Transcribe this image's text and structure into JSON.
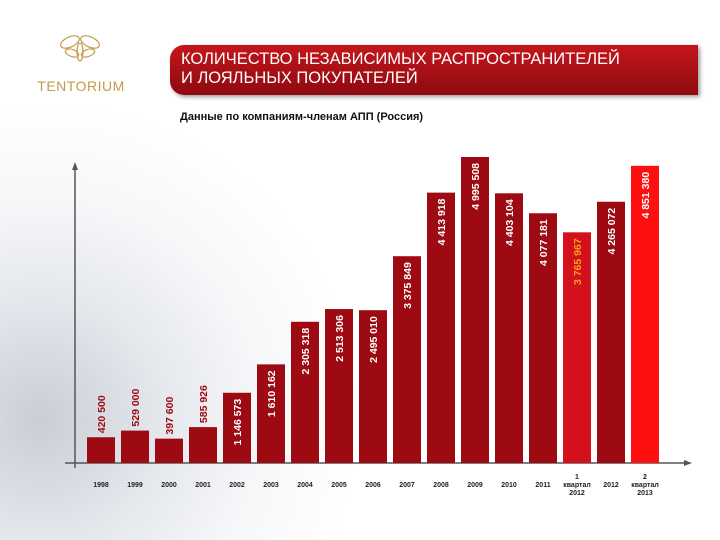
{
  "logo": "TENTORIUM",
  "chart_data": {
    "type": "bar",
    "title": "КОЛИЧЕСТВО НЕЗАВИСИМЫХ РАСПРОСТРАНИТЕЛЕЙ\nИ ЛОЯЛЬНЫХ ПОКУПАТЕЛЕЙ",
    "subtitle": "Данные по компаниям-членам АПП (Россия)",
    "categories": [
      "1998",
      "1999",
      "2000",
      "2001",
      "2002",
      "2003",
      "2004",
      "2005",
      "2006",
      "2007",
      "2008",
      "2009",
      "2010",
      "2011",
      "1\nквартал\n2012",
      "2012",
      "2\nквартал\n2013"
    ],
    "values": [
      420500,
      529000,
      397600,
      585926,
      1146573,
      1610162,
      2305318,
      2513306,
      2495010,
      3375849,
      4413918,
      4995508,
      4403104,
      4077181,
      3765967,
      4265072,
      4851380
    ],
    "value_labels": [
      "420 500",
      "529 000",
      "397 600",
      "585 926",
      "1 146 573",
      "1 610 162",
      "2 305 318",
      "2 513 306",
      "2 495 010",
      "3 375 849",
      "4 413 918",
      "4 995 508",
      "4 403 104",
      "4 077 181",
      "3 765 967",
      "4 265 072",
      "4 851 380"
    ],
    "colors": [
      "#9e0a12",
      "#9e0a12",
      "#9e0a12",
      "#9e0a12",
      "#9e0a12",
      "#9e0a12",
      "#9e0a12",
      "#9e0a12",
      "#9e0a12",
      "#9e0a12",
      "#9e0a12",
      "#9e0a12",
      "#9e0a12",
      "#9e0a12",
      "#d4101c",
      "#9e0a12",
      "#ff1010"
    ],
    "label_colors": [
      "#ffffff",
      "#ffffff",
      "#ffffff",
      "#ffffff",
      "#ffffff",
      "#ffffff",
      "#ffffff",
      "#ffffff",
      "#ffffff",
      "#ffffff",
      "#ffffff",
      "#ffffff",
      "#ffffff",
      "#ffffff",
      "#f7a21b",
      "#ffffff",
      "#ffffff"
    ]
  }
}
